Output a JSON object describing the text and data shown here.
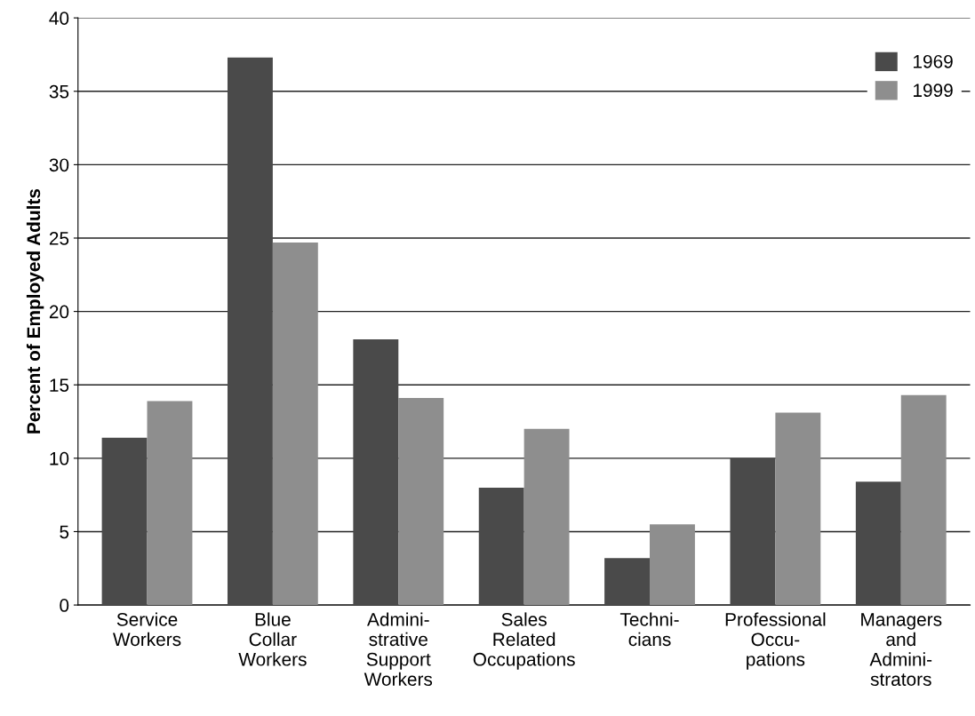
{
  "chart_data": {
    "type": "bar",
    "ylabel": "Percent of Employed Adults",
    "categories": [
      "Service\nWorkers",
      "Blue\nCollar\nWorkers",
      "Admini-\nstrative\nSupport\nWorkers",
      "Sales\nRelated\nOccupations",
      "Techni-\ncians",
      "Professional\nOccu-\npations",
      "Managers\nand\nAdmini-\nstrators"
    ],
    "series": [
      {
        "name": "1969",
        "color": "#4a4a4a",
        "values": [
          11.4,
          37.3,
          18.1,
          8.0,
          3.2,
          10.0,
          8.4
        ]
      },
      {
        "name": "1999",
        "color": "#8e8e8e",
        "values": [
          13.9,
          24.7,
          14.1,
          12.0,
          5.5,
          13.1,
          14.3
        ]
      }
    ],
    "ylim": [
      0,
      40
    ],
    "yticks": [
      0,
      5,
      10,
      15,
      20,
      25,
      30,
      35,
      40
    ],
    "grid": "y",
    "legend": "top right"
  }
}
